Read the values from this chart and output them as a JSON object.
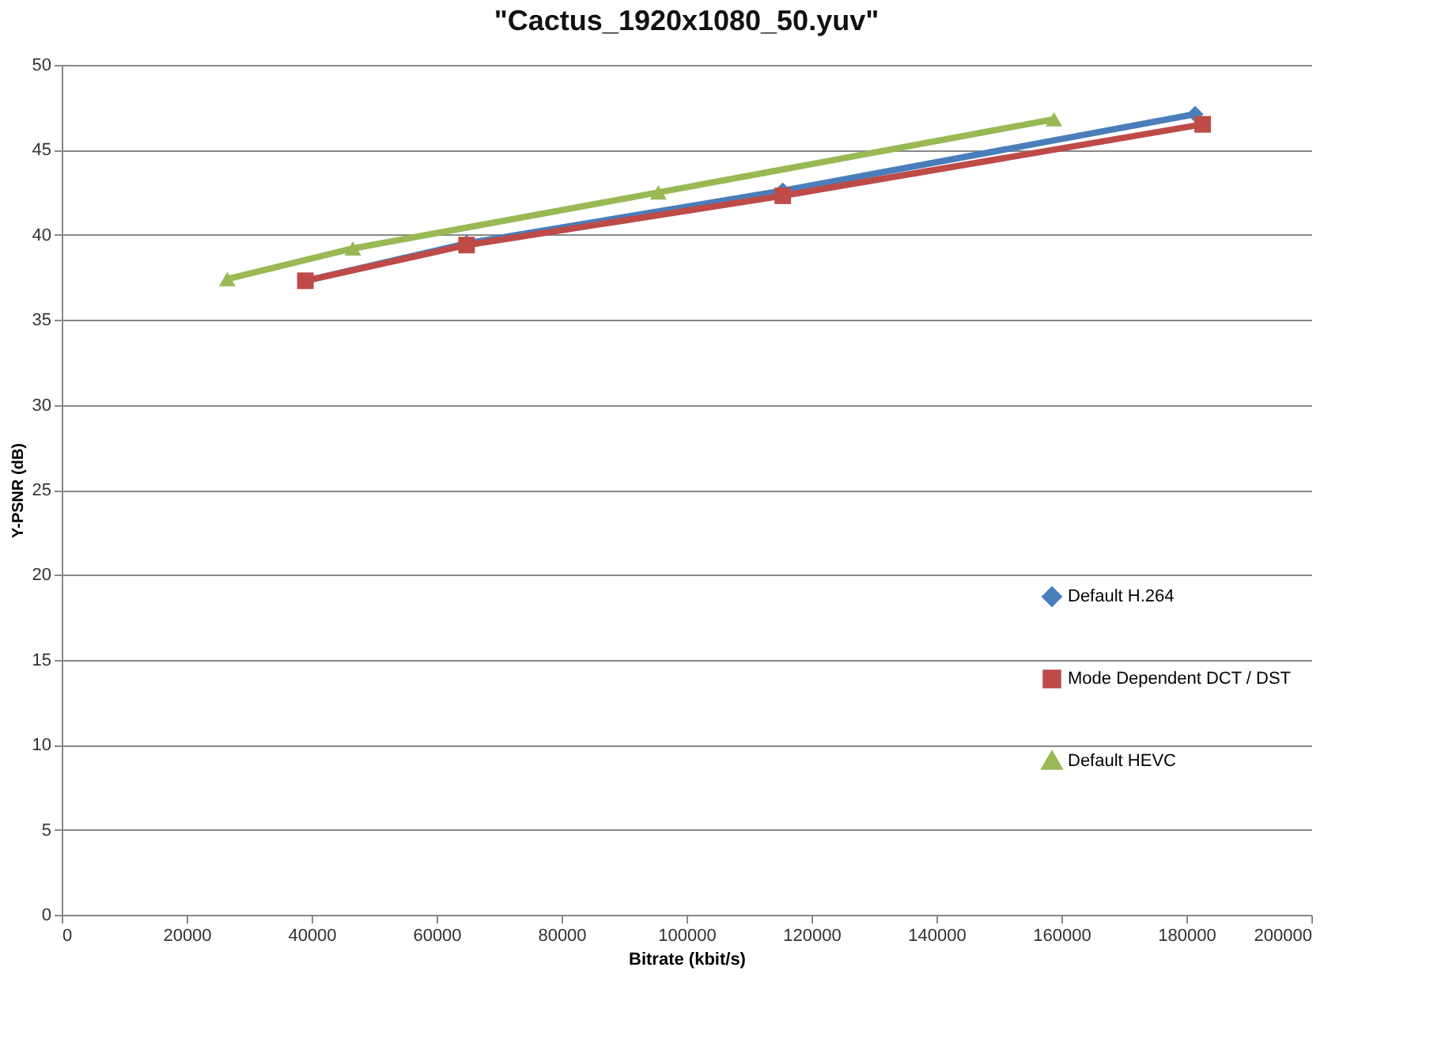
{
  "chart_data": {
    "type": "line",
    "title": "\"Cactus_1920x1080_50.yuv\"",
    "xlabel": "Bitrate (kbit/s)",
    "ylabel": "Y-PSNR (dB)",
    "xlim": [
      0,
      200000
    ],
    "xticks": [
      0,
      20000,
      40000,
      60000,
      80000,
      100000,
      120000,
      140000,
      160000,
      180000,
      200000
    ],
    "ylim": [
      0,
      50
    ],
    "yticks": [
      0,
      5,
      10,
      15,
      20,
      25,
      30,
      35,
      40,
      45,
      50
    ],
    "grid": "y",
    "legend": "right",
    "series": [
      {
        "name": "Default H.264",
        "color": "#4a7ebb",
        "marker": "diamond",
        "x": [
          39000,
          64800,
          115400,
          181400
        ],
        "values": [
          37.3,
          39.5,
          42.6,
          47.1
        ]
      },
      {
        "name": "Mode Dependent DCT / DST",
        "color": "#be4b48",
        "marker": "square",
        "x": [
          39000,
          64800,
          115400,
          182600
        ],
        "values": [
          37.3,
          39.4,
          42.3,
          46.5
        ]
      },
      {
        "name": "Default HEVC",
        "color": "#98b954",
        "marker": "triangle",
        "x": [
          26500,
          46600,
          95500,
          158800
        ],
        "values": [
          37.4,
          39.2,
          42.5,
          46.8
        ]
      }
    ]
  }
}
